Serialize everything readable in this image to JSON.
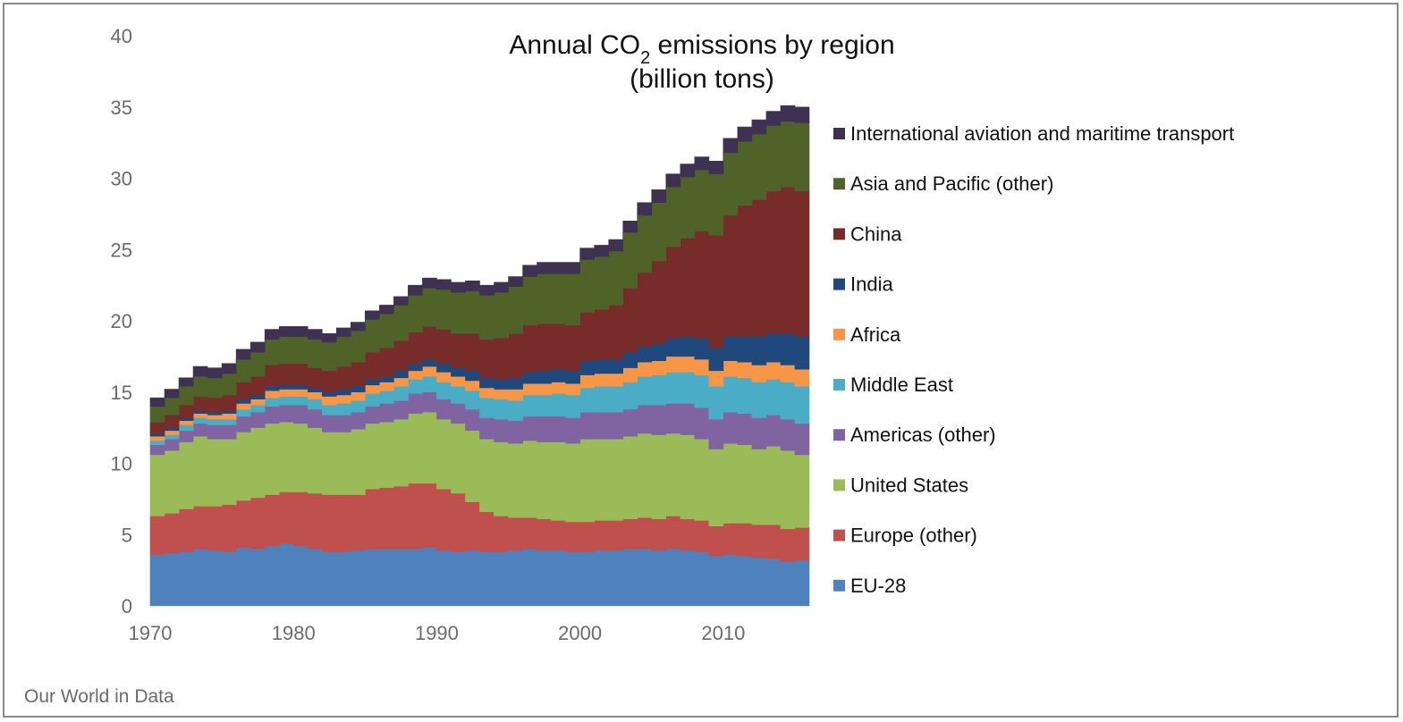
{
  "chart_data": {
    "type": "area",
    "title_main": "Annual CO",
    "title_sub": "2",
    "title_tail": " emissions by region",
    "title_line2": "(billion tons)",
    "xlabel": "",
    "ylabel": "",
    "ylim": [
      0,
      40
    ],
    "xlim": [
      1970,
      2015
    ],
    "yticks": [
      "0",
      "5",
      "10",
      "15",
      "20",
      "25",
      "30",
      "35",
      "40"
    ],
    "xticks": [
      "1970",
      "1980",
      "1990",
      "2000",
      "2010"
    ],
    "grid": false,
    "legend_position": "right",
    "x": [
      1970,
      1971,
      1972,
      1973,
      1974,
      1975,
      1976,
      1977,
      1978,
      1979,
      1980,
      1981,
      1982,
      1983,
      1984,
      1985,
      1986,
      1987,
      1988,
      1989,
      1990,
      1991,
      1992,
      1993,
      1994,
      1995,
      1996,
      1997,
      1998,
      1999,
      2000,
      2001,
      2002,
      2003,
      2004,
      2005,
      2006,
      2007,
      2008,
      2009,
      2010,
      2011,
      2012,
      2013,
      2014,
      2015
    ],
    "series": [
      {
        "name": "EU-28",
        "color": "#4f81bd",
        "values": [
          3.6,
          3.7,
          3.8,
          4.0,
          3.9,
          3.8,
          4.1,
          4.0,
          4.2,
          4.4,
          4.2,
          4.0,
          3.8,
          3.8,
          3.9,
          4.0,
          4.0,
          4.0,
          4.0,
          4.1,
          3.9,
          3.8,
          3.9,
          3.8,
          3.8,
          3.9,
          4.0,
          3.9,
          3.9,
          3.8,
          3.8,
          3.9,
          3.9,
          4.0,
          4.0,
          3.9,
          4.0,
          3.9,
          3.8,
          3.5,
          3.6,
          3.5,
          3.4,
          3.3,
          3.1,
          3.2
        ]
      },
      {
        "name": "Europe (other)",
        "color": "#c0504d",
        "values": [
          2.7,
          2.8,
          3.0,
          3.0,
          3.1,
          3.3,
          3.3,
          3.6,
          3.6,
          3.6,
          3.8,
          3.9,
          4.0,
          4.0,
          3.9,
          4.2,
          4.3,
          4.4,
          4.6,
          4.5,
          4.3,
          4.1,
          3.4,
          2.8,
          2.5,
          2.3,
          2.2,
          2.2,
          2.1,
          2.1,
          2.1,
          2.1,
          2.1,
          2.1,
          2.2,
          2.2,
          2.3,
          2.2,
          2.2,
          2.1,
          2.2,
          2.3,
          2.3,
          2.4,
          2.3,
          2.3
        ]
      },
      {
        "name": "United States",
        "color": "#9bbb59",
        "values": [
          4.3,
          4.4,
          4.7,
          4.9,
          4.7,
          4.6,
          4.8,
          4.9,
          5.0,
          4.9,
          4.8,
          4.6,
          4.4,
          4.4,
          4.6,
          4.6,
          4.6,
          4.7,
          4.9,
          5.0,
          4.9,
          4.9,
          5.0,
          5.1,
          5.2,
          5.2,
          5.4,
          5.4,
          5.5,
          5.5,
          5.8,
          5.7,
          5.7,
          5.8,
          5.9,
          5.9,
          5.8,
          5.9,
          5.7,
          5.4,
          5.6,
          5.5,
          5.3,
          5.5,
          5.5,
          5.1
        ]
      },
      {
        "name": "Americas (other)",
        "color": "#8064a2",
        "values": [
          0.7,
          0.8,
          0.8,
          0.9,
          1.0,
          1.0,
          1.1,
          1.1,
          1.2,
          1.2,
          1.3,
          1.3,
          1.2,
          1.2,
          1.2,
          1.2,
          1.3,
          1.3,
          1.4,
          1.4,
          1.4,
          1.4,
          1.5,
          1.5,
          1.6,
          1.6,
          1.7,
          1.8,
          1.8,
          1.8,
          1.9,
          1.9,
          1.9,
          1.9,
          2.0,
          2.1,
          2.1,
          2.2,
          2.2,
          2.1,
          2.2,
          2.2,
          2.2,
          2.2,
          2.2,
          2.2
        ]
      },
      {
        "name": "Middle East",
        "color": "#4bacc6",
        "values": [
          0.3,
          0.3,
          0.4,
          0.4,
          0.4,
          0.4,
          0.5,
          0.5,
          0.6,
          0.6,
          0.6,
          0.7,
          0.7,
          0.8,
          0.8,
          0.9,
          0.9,
          1.0,
          1.0,
          1.1,
          1.2,
          1.2,
          1.3,
          1.4,
          1.4,
          1.4,
          1.5,
          1.5,
          1.6,
          1.6,
          1.7,
          1.8,
          1.8,
          1.9,
          2.0,
          2.1,
          2.2,
          2.2,
          2.3,
          2.3,
          2.5,
          2.5,
          2.5,
          2.5,
          2.6,
          2.6
        ]
      },
      {
        "name": "Africa",
        "color": "#f79646",
        "values": [
          0.3,
          0.3,
          0.3,
          0.3,
          0.3,
          0.4,
          0.4,
          0.4,
          0.5,
          0.5,
          0.5,
          0.5,
          0.6,
          0.6,
          0.6,
          0.6,
          0.6,
          0.6,
          0.6,
          0.7,
          0.7,
          0.7,
          0.7,
          0.7,
          0.7,
          0.8,
          0.8,
          0.8,
          0.8,
          0.8,
          0.9,
          0.9,
          0.9,
          1.0,
          1.0,
          1.0,
          1.1,
          1.1,
          1.1,
          1.1,
          1.1,
          1.1,
          1.2,
          1.2,
          1.2,
          1.2
        ]
      },
      {
        "name": "India",
        "color": "#1f497d",
        "values": [
          0.2,
          0.2,
          0.2,
          0.2,
          0.2,
          0.2,
          0.3,
          0.3,
          0.3,
          0.3,
          0.3,
          0.3,
          0.3,
          0.4,
          0.4,
          0.4,
          0.4,
          0.5,
          0.5,
          0.5,
          0.6,
          0.6,
          0.7,
          0.7,
          0.7,
          0.8,
          0.8,
          0.9,
          0.9,
          0.9,
          1.0,
          1.0,
          1.0,
          1.1,
          1.1,
          1.2,
          1.3,
          1.4,
          1.5,
          1.6,
          1.7,
          1.8,
          2.0,
          2.0,
          2.2,
          2.3
        ]
      },
      {
        "name": "China",
        "color": "#772c2a",
        "values": [
          0.8,
          0.9,
          0.9,
          1.0,
          1.0,
          1.1,
          1.2,
          1.3,
          1.5,
          1.5,
          1.5,
          1.4,
          1.5,
          1.6,
          1.7,
          1.9,
          2.0,
          2.1,
          2.2,
          2.3,
          2.4,
          2.4,
          2.6,
          2.7,
          2.9,
          3.1,
          3.3,
          3.3,
          3.2,
          3.2,
          3.4,
          3.5,
          3.8,
          4.5,
          5.2,
          5.8,
          6.4,
          6.9,
          7.5,
          7.9,
          8.5,
          9.2,
          9.6,
          10.0,
          10.3,
          10.2
        ]
      },
      {
        "name": "Asia and Pacific (other)",
        "color": "#4f6228",
        "values": [
          1.1,
          1.2,
          1.3,
          1.4,
          1.4,
          1.5,
          1.6,
          1.7,
          1.8,
          1.9,
          1.9,
          2.0,
          2.0,
          2.1,
          2.2,
          2.3,
          2.4,
          2.5,
          2.6,
          2.7,
          2.8,
          2.9,
          3.0,
          3.1,
          3.2,
          3.3,
          3.4,
          3.5,
          3.5,
          3.6,
          3.7,
          3.7,
          3.8,
          3.9,
          4.0,
          4.1,
          4.2,
          4.3,
          4.3,
          4.3,
          4.4,
          4.5,
          4.6,
          4.6,
          4.6,
          4.8
        ]
      },
      {
        "name": "International aviation and maritime transport",
        "color": "#3f3151",
        "values": [
          0.6,
          0.6,
          0.6,
          0.7,
          0.7,
          0.7,
          0.7,
          0.7,
          0.7,
          0.7,
          0.7,
          0.7,
          0.6,
          0.6,
          0.6,
          0.6,
          0.6,
          0.6,
          0.7,
          0.7,
          0.7,
          0.7,
          0.7,
          0.7,
          0.7,
          0.7,
          0.8,
          0.8,
          0.8,
          0.8,
          0.8,
          0.8,
          0.8,
          0.8,
          0.9,
          0.9,
          0.9,
          0.9,
          0.9,
          0.9,
          1.0,
          1.0,
          1.0,
          1.0,
          1.1,
          1.1
        ]
      }
    ]
  },
  "source_label": "Our World in Data"
}
